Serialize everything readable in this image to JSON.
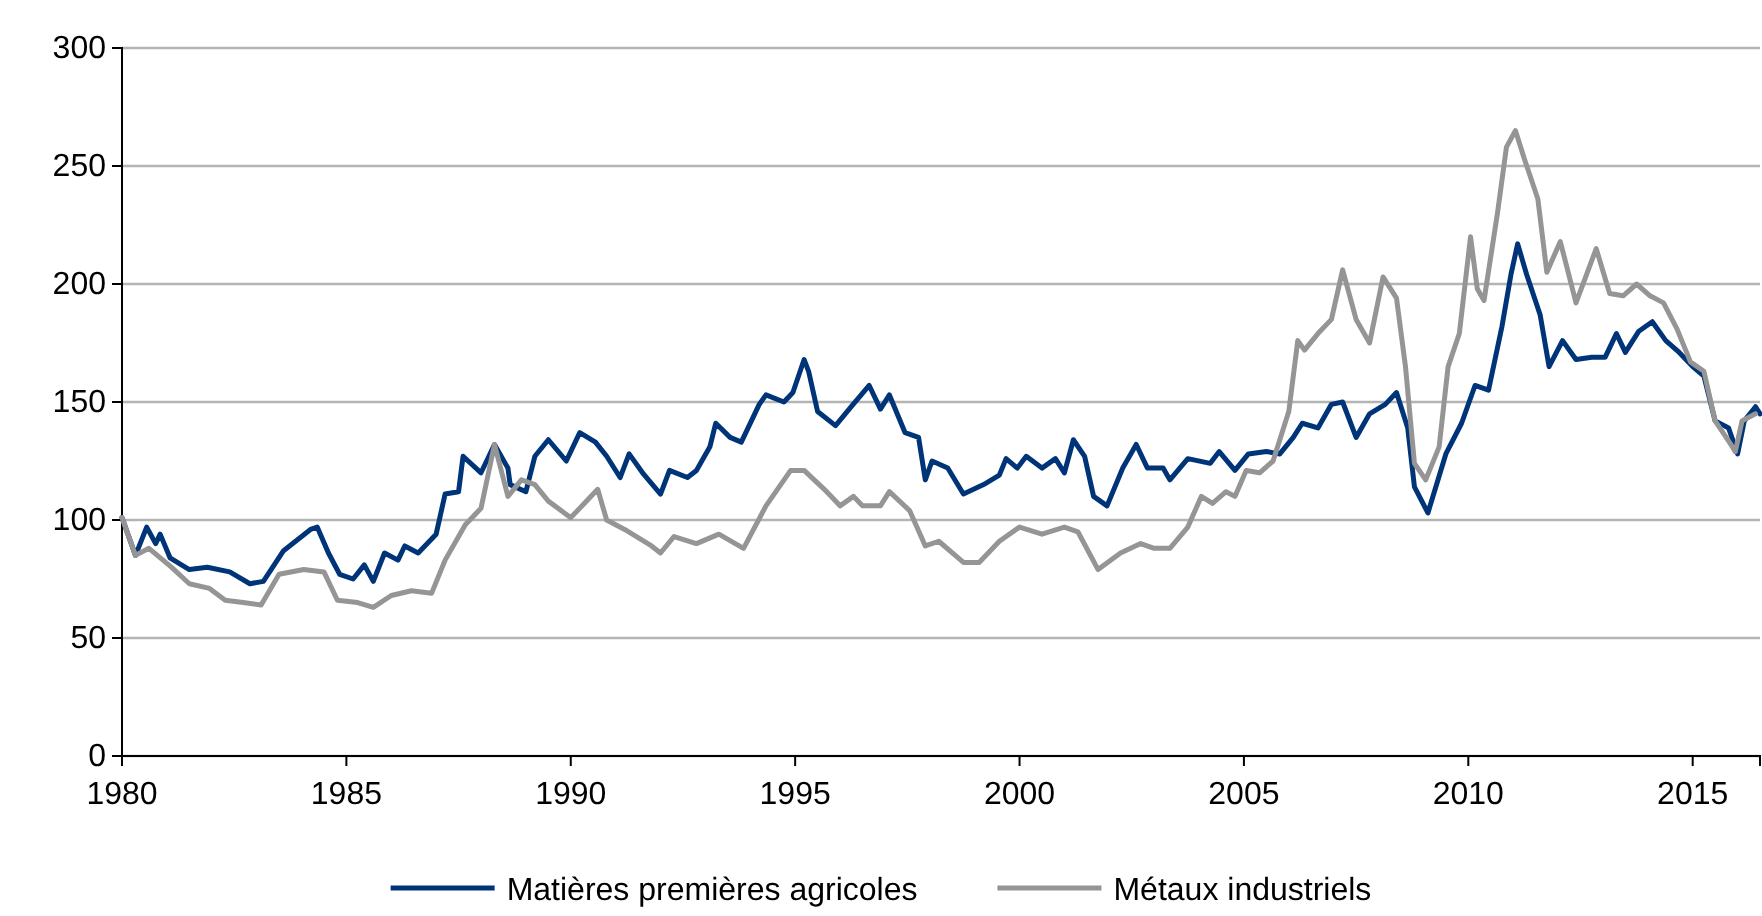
{
  "chart_data": {
    "type": "line",
    "xlim": [
      1980,
      2016.5
    ],
    "xticks": [
      1980,
      1985,
      1990,
      1995,
      2000,
      2005,
      2010,
      2015
    ],
    "ylim": [
      0,
      300
    ],
    "yticks": [
      0,
      50,
      100,
      150,
      200,
      250,
      300
    ],
    "grid": "y",
    "legend": "bottom",
    "line_style": "solid",
    "marker": "none",
    "series": [
      {
        "name": "Matières premières agricoles",
        "color": "#003478",
        "x": [
          1980,
          1980.3,
          1980.55,
          1980.75,
          1980.85,
          1981.07,
          1981.5,
          1981.9,
          1982.4,
          1982.85,
          1983.15,
          1983.6,
          1984.2,
          1984.35,
          1984.6,
          1984.85,
          1985.15,
          1985.4,
          1985.6,
          1985.85,
          1986.15,
          1986.3,
          1986.6,
          1987,
          1987.2,
          1987.5,
          1987.6,
          1988,
          1988.3,
          1988.6,
          1988.65,
          1989,
          1989.2,
          1989.5,
          1989.9,
          1990.2,
          1990.55,
          1990.8,
          1991.1,
          1991.3,
          1991.6,
          1992,
          1992.2,
          1992.6,
          1992.8,
          1993.1,
          1993.23,
          1993.55,
          1993.8,
          1994.2,
          1994.35,
          1994.75,
          1994.95,
          1995.2,
          1995.3,
          1995.5,
          1995.9,
          1996.25,
          1996.65,
          1996.9,
          1997.1,
          1997.45,
          1997.75,
          1997.9,
          1998.05,
          1998.4,
          1998.75,
          1999.2,
          1999.55,
          1999.7,
          1999.95,
          2000.15,
          2000.5,
          2000.8,
          2001,
          2001.2,
          2001.45,
          2001.65,
          2001.95,
          2002.3,
          2002.6,
          2002.85,
          2003.2,
          2003.35,
          2003.75,
          2004.25,
          2004.45,
          2004.8,
          2005.1,
          2005.5,
          2005.8,
          2006.1,
          2006.3,
          2006.65,
          2006.95,
          2007.2,
          2007.5,
          2007.8,
          2008.15,
          2008.4,
          2008.65,
          2008.8,
          2009.1,
          2009.5,
          2009.85,
          2010.15,
          2010.45,
          2010.75,
          2010.95,
          2011.1,
          2011.3,
          2011.6,
          2011.8,
          2012.1,
          2012.4,
          2012.75,
          2013.05,
          2013.3,
          2013.5,
          2013.8,
          2014.1,
          2014.4,
          2014.7,
          2015,
          2015.25,
          2015.5,
          2015.8,
          2016,
          2016.15,
          2016.4,
          2016.5
        ],
        "values": [
          101,
          85,
          97,
          90,
          94,
          84,
          79,
          80,
          78,
          73,
          74,
          87,
          96,
          97,
          86,
          77,
          75,
          81,
          74,
          86,
          83,
          89,
          86,
          94,
          111,
          112,
          127,
          120,
          132,
          122,
          115,
          112,
          127,
          134,
          125,
          137,
          133,
          127,
          118,
          128,
          120,
          111,
          121,
          118,
          121,
          131,
          141,
          135,
          133,
          149,
          153,
          150,
          154,
          168,
          163,
          146,
          140,
          148,
          157,
          147,
          153,
          137,
          135,
          117,
          125,
          122,
          111,
          115,
          119,
          126,
          122,
          127,
          122,
          126,
          120,
          134,
          127,
          110,
          106,
          122,
          132,
          122,
          122,
          117,
          126,
          124,
          129,
          121,
          128,
          129,
          128,
          135,
          141,
          139,
          149,
          150,
          135,
          145,
          149,
          154,
          139,
          114,
          103,
          128,
          141,
          157,
          155,
          182,
          204,
          217,
          204,
          187,
          165,
          176,
          168,
          169,
          169,
          179,
          171,
          180,
          184,
          176,
          171,
          165,
          161,
          142,
          139,
          128,
          142,
          148,
          145
        ]
      },
      {
        "name": "Métaux industriels",
        "color": "#959595",
        "x": [
          1980,
          1980.3,
          1980.6,
          1981.1,
          1981.5,
          1981.95,
          1982.3,
          1982.7,
          1983.1,
          1983.5,
          1984.05,
          1984.5,
          1984.8,
          1985.25,
          1985.6,
          1986,
          1986.45,
          1986.9,
          1987.2,
          1987.65,
          1988,
          1988.3,
          1988.6,
          1988.9,
          1989.2,
          1989.5,
          1990,
          1990.3,
          1990.6,
          1990.8,
          1991.2,
          1991.8,
          1992,
          1992.3,
          1992.8,
          1993.3,
          1993.85,
          1994.35,
          1994.9,
          1995.2,
          1995.65,
          1996,
          1996.3,
          1996.5,
          1996.9,
          1997.1,
          1997.55,
          1997.9,
          1998.2,
          1998.75,
          1999.1,
          1999.55,
          2000,
          2000.5,
          2001,
          2001.3,
          2001.75,
          2002.25,
          2002.7,
          2003,
          2003.35,
          2003.75,
          2004.05,
          2004.3,
          2004.6,
          2004.8,
          2005.05,
          2005.35,
          2005.65,
          2006,
          2006.2,
          2006.35,
          2006.65,
          2006.95,
          2007.2,
          2007.5,
          2007.8,
          2008.1,
          2008.4,
          2008.6,
          2008.8,
          2009.05,
          2009.35,
          2009.55,
          2009.8,
          2010.05,
          2010.2,
          2010.35,
          2010.65,
          2010.85,
          2011.05,
          2011.25,
          2011.55,
          2011.75,
          2012.05,
          2012.4,
          2012.85,
          2013.15,
          2013.45,
          2013.75,
          2014.05,
          2014.35,
          2014.65,
          2014.95,
          2015.25,
          2015.5,
          2015.85,
          2015.95,
          2016.1,
          2016.4
        ],
        "values": [
          101,
          85,
          88,
          80,
          73,
          71,
          66,
          65,
          64,
          77,
          79,
          78,
          66,
          65,
          63,
          68,
          70,
          69,
          83,
          98,
          105,
          132,
          110,
          117,
          115,
          108,
          101,
          107,
          113,
          100,
          96,
          89,
          86,
          93,
          90,
          94,
          88,
          106,
          121,
          121,
          113,
          106,
          110,
          106,
          106,
          112,
          104,
          89,
          91,
          82,
          82,
          91,
          97,
          94,
          97,
          95,
          79,
          86,
          90,
          88,
          88,
          97,
          110,
          107,
          112,
          110,
          121,
          120,
          125,
          146,
          176,
          172,
          179,
          185,
          206,
          185,
          175,
          203,
          194,
          165,
          124,
          117,
          131,
          165,
          179,
          220,
          198,
          193,
          230,
          258,
          265,
          253,
          236,
          205,
          218,
          192,
          215,
          196,
          195,
          200,
          195,
          192,
          181,
          167,
          163,
          142,
          132,
          129,
          142,
          145
        ]
      }
    ]
  }
}
